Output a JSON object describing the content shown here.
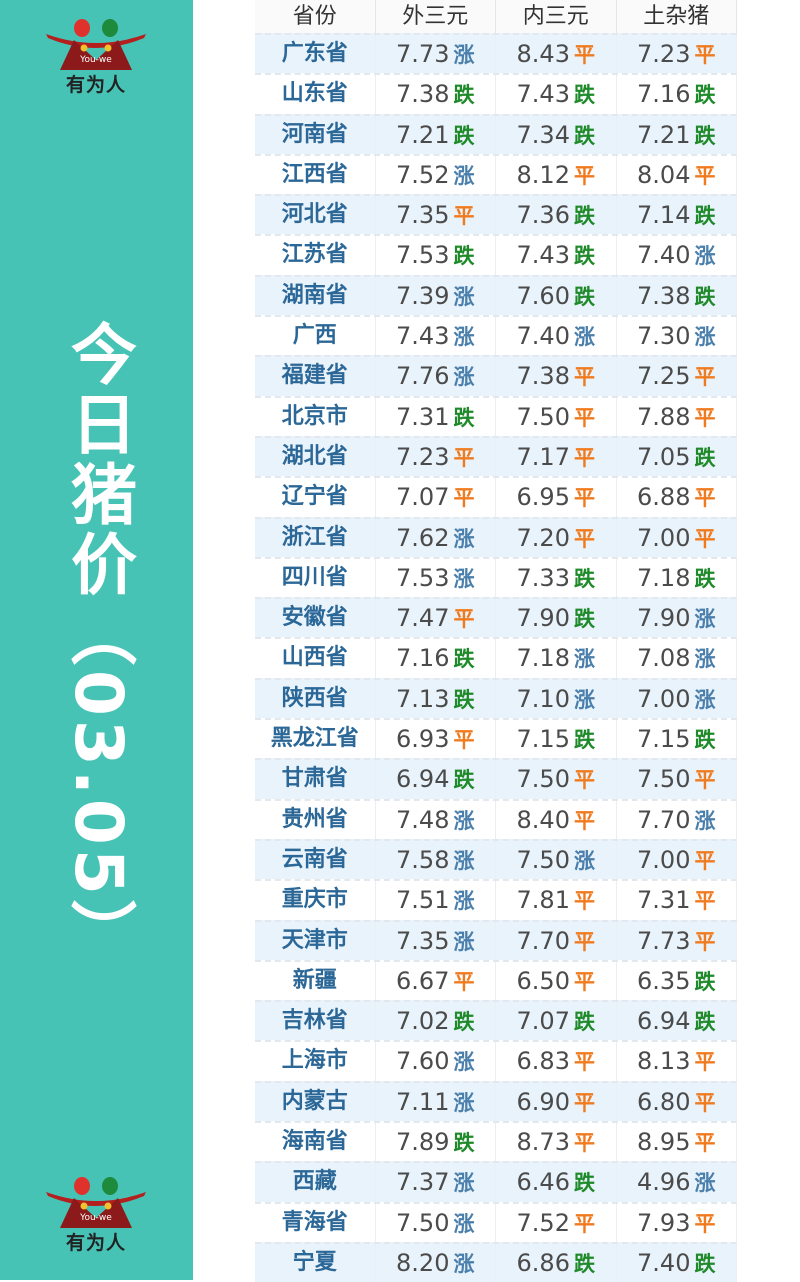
{
  "brand": {
    "name": "有为人",
    "sub": "You-we"
  },
  "title": "今日猪价（03.05）",
  "colors": {
    "side": "#47c3b6",
    "up": "#4a7fac",
    "down": "#1f8a2a",
    "flat": "#f07a1e",
    "province": "#2b6797"
  },
  "headers": [
    "省份",
    "外三元",
    "内三元",
    "土杂猪"
  ],
  "rows": [
    [
      "广东省",
      "7.73",
      "涨",
      "8.43",
      "平",
      "7.23",
      "平"
    ],
    [
      "山东省",
      "7.38",
      "跌",
      "7.43",
      "跌",
      "7.16",
      "跌"
    ],
    [
      "河南省",
      "7.21",
      "跌",
      "7.34",
      "跌",
      "7.21",
      "跌"
    ],
    [
      "江西省",
      "7.52",
      "涨",
      "8.12",
      "平",
      "8.04",
      "平"
    ],
    [
      "河北省",
      "7.35",
      "平",
      "7.36",
      "跌",
      "7.14",
      "跌"
    ],
    [
      "江苏省",
      "7.53",
      "跌",
      "7.43",
      "跌",
      "7.40",
      "涨"
    ],
    [
      "湖南省",
      "7.39",
      "涨",
      "7.60",
      "跌",
      "7.38",
      "跌"
    ],
    [
      "广西",
      "7.43",
      "涨",
      "7.40",
      "涨",
      "7.30",
      "涨"
    ],
    [
      "福建省",
      "7.76",
      "涨",
      "7.38",
      "平",
      "7.25",
      "平"
    ],
    [
      "北京市",
      "7.31",
      "跌",
      "7.50",
      "平",
      "7.88",
      "平"
    ],
    [
      "湖北省",
      "7.23",
      "平",
      "7.17",
      "平",
      "7.05",
      "跌"
    ],
    [
      "辽宁省",
      "7.07",
      "平",
      "6.95",
      "平",
      "6.88",
      "平"
    ],
    [
      "浙江省",
      "7.62",
      "涨",
      "7.20",
      "平",
      "7.00",
      "平"
    ],
    [
      "四川省",
      "7.53",
      "涨",
      "7.33",
      "跌",
      "7.18",
      "跌"
    ],
    [
      "安徽省",
      "7.47",
      "平",
      "7.90",
      "跌",
      "7.90",
      "涨"
    ],
    [
      "山西省",
      "7.16",
      "跌",
      "7.18",
      "涨",
      "7.08",
      "涨"
    ],
    [
      "陕西省",
      "7.13",
      "跌",
      "7.10",
      "涨",
      "7.00",
      "涨"
    ],
    [
      "黑龙江省",
      "6.93",
      "平",
      "7.15",
      "跌",
      "7.15",
      "跌"
    ],
    [
      "甘肃省",
      "6.94",
      "跌",
      "7.50",
      "平",
      "7.50",
      "平"
    ],
    [
      "贵州省",
      "7.48",
      "涨",
      "8.40",
      "平",
      "7.70",
      "涨"
    ],
    [
      "云南省",
      "7.58",
      "涨",
      "7.50",
      "涨",
      "7.00",
      "平"
    ],
    [
      "重庆市",
      "7.51",
      "涨",
      "7.81",
      "平",
      "7.31",
      "平"
    ],
    [
      "天津市",
      "7.35",
      "涨",
      "7.70",
      "平",
      "7.73",
      "平"
    ],
    [
      "新疆",
      "6.67",
      "平",
      "6.50",
      "平",
      "6.35",
      "跌"
    ],
    [
      "吉林省",
      "7.02",
      "跌",
      "7.07",
      "跌",
      "6.94",
      "跌"
    ],
    [
      "上海市",
      "7.60",
      "涨",
      "6.83",
      "平",
      "8.13",
      "平"
    ],
    [
      "内蒙古",
      "7.11",
      "涨",
      "6.90",
      "平",
      "6.80",
      "平"
    ],
    [
      "海南省",
      "7.89",
      "跌",
      "8.73",
      "平",
      "8.95",
      "平"
    ],
    [
      "西藏",
      "7.37",
      "涨",
      "6.46",
      "跌",
      "4.96",
      "涨"
    ],
    [
      "青海省",
      "7.50",
      "涨",
      "7.52",
      "平",
      "7.93",
      "平"
    ],
    [
      "宁夏",
      "8.20",
      "涨",
      "6.86",
      "跌",
      "7.40",
      "跌"
    ]
  ]
}
